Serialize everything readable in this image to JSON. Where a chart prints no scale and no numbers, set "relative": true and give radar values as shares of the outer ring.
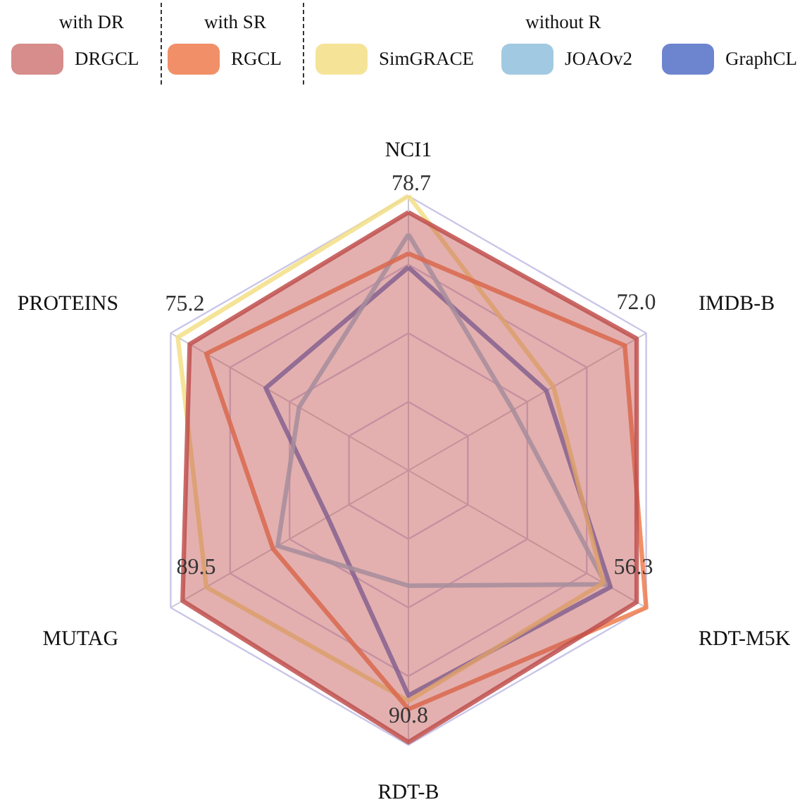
{
  "chart_data": {
    "type": "radar",
    "relative": true,
    "categories": [
      "NCI1",
      "IMDB-B",
      "RDT-M5K",
      "RDT-B",
      "MUTAG",
      "PROTEINS"
    ],
    "series": [
      {
        "name": "DRGCL",
        "color": "#c0504d",
        "type": "area",
        "values": [
          0.94,
          0.96,
          0.96,
          0.99,
          0.95,
          0.92
        ]
      },
      {
        "name": "RGCL",
        "color": "#ee7c4e",
        "values": [
          0.79,
          0.91,
          1.0,
          0.87,
          0.57,
          0.85
        ]
      },
      {
        "name": "SimGRACE",
        "color": "#f3df86",
        "values": [
          1.0,
          0.61,
          0.82,
          0.84,
          0.85,
          0.97
        ]
      },
      {
        "name": "JOAOv2",
        "color": "#92bfdd",
        "values": [
          0.86,
          0.44,
          0.83,
          0.42,
          0.55,
          0.46
        ]
      },
      {
        "name": "GraphCL",
        "color": "#5470c6",
        "values": [
          0.74,
          0.58,
          0.85,
          0.82,
          0.34,
          0.6
        ]
      }
    ],
    "annotations": [
      "with DR",
      "with SR",
      "without R",
      "78.7",
      "72.0",
      "56.3",
      "90.8",
      "89.5",
      "75.2"
    ],
    "legend": "top",
    "grid": true
  }
}
